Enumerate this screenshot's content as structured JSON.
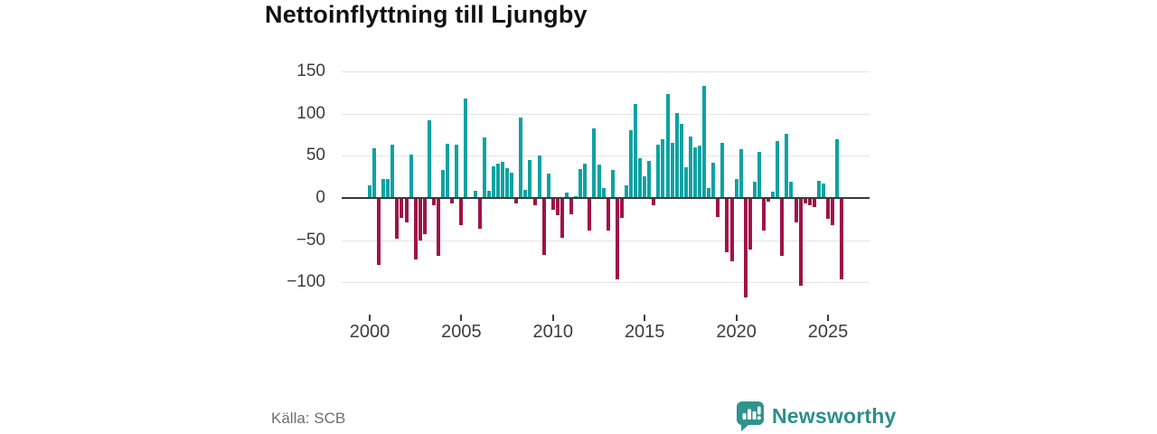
{
  "header": {
    "title": "Nettoinflyttning till Ljungby"
  },
  "axes": {
    "y_ticks": [
      {
        "value": 150,
        "label": "150"
      },
      {
        "value": 100,
        "label": "100"
      },
      {
        "value": 50,
        "label": "50"
      },
      {
        "value": 0,
        "label": "0"
      },
      {
        "value": -50,
        "label": "−50"
      },
      {
        "value": -100,
        "label": "−100"
      }
    ],
    "x_ticks": [
      {
        "year": 2000,
        "label": "2000"
      },
      {
        "year": 2005,
        "label": "2005"
      },
      {
        "year": 2010,
        "label": "2010"
      },
      {
        "year": 2015,
        "label": "2015"
      },
      {
        "year": 2020,
        "label": "2020"
      },
      {
        "year": 2025,
        "label": "2025"
      }
    ]
  },
  "footer": {
    "source": "Källa: SCB",
    "brand": "Newsworthy"
  },
  "colors": {
    "positive": "#0da2a2",
    "negative": "#a11248",
    "grid": "#e4e4e4",
    "zero_line": "#3a3a3a",
    "axis_text": "#3c3c3c",
    "title_text": "#111111",
    "source_text": "#6e6e6e",
    "brand_teal": "#2f948c"
  },
  "chart_data": {
    "type": "bar",
    "title": "Nettoinflyttning till Ljungby",
    "xlabel": "",
    "ylabel": "",
    "x_unit": "quarter",
    "start": "2000Q1",
    "end": "2025Q4",
    "x_start_year": 2000,
    "ylim": [
      -125,
      160
    ],
    "yticks": [
      150,
      100,
      50,
      0,
      -50,
      -100
    ],
    "xticks": [
      2000,
      2005,
      2010,
      2015,
      2020,
      2025
    ],
    "grid": true,
    "legend": "none",
    "positive_color": "#0da2a2",
    "negative_color": "#a11248",
    "values": [
      15,
      59,
      -78,
      22,
      23,
      63,
      -47,
      -22,
      -28,
      51,
      -72,
      -49,
      -42,
      92,
      -8,
      -67,
      33,
      64,
      -5,
      63,
      -31,
      118,
      0,
      9,
      -35,
      72,
      9,
      38,
      41,
      43,
      35,
      30,
      -5,
      95,
      10,
      45,
      -8,
      50,
      -66,
      29,
      -13,
      -19,
      -46,
      6,
      -18,
      2,
      34,
      41,
      -37,
      83,
      40,
      12,
      -37,
      33,
      -95,
      -22,
      15,
      80,
      111,
      47,
      26,
      44,
      -8,
      63,
      70,
      123,
      65,
      101,
      88,
      36,
      73,
      60,
      62,
      133,
      12,
      42,
      -21,
      65,
      -63,
      -74,
      23,
      58,
      -117,
      -60,
      19,
      55,
      -38,
      -3,
      7,
      68,
      -67,
      76,
      19,
      -28,
      -103,
      -5,
      -7,
      -10,
      20,
      17,
      -24,
      -31,
      70,
      -95
    ],
    "source": "Källa: SCB"
  }
}
